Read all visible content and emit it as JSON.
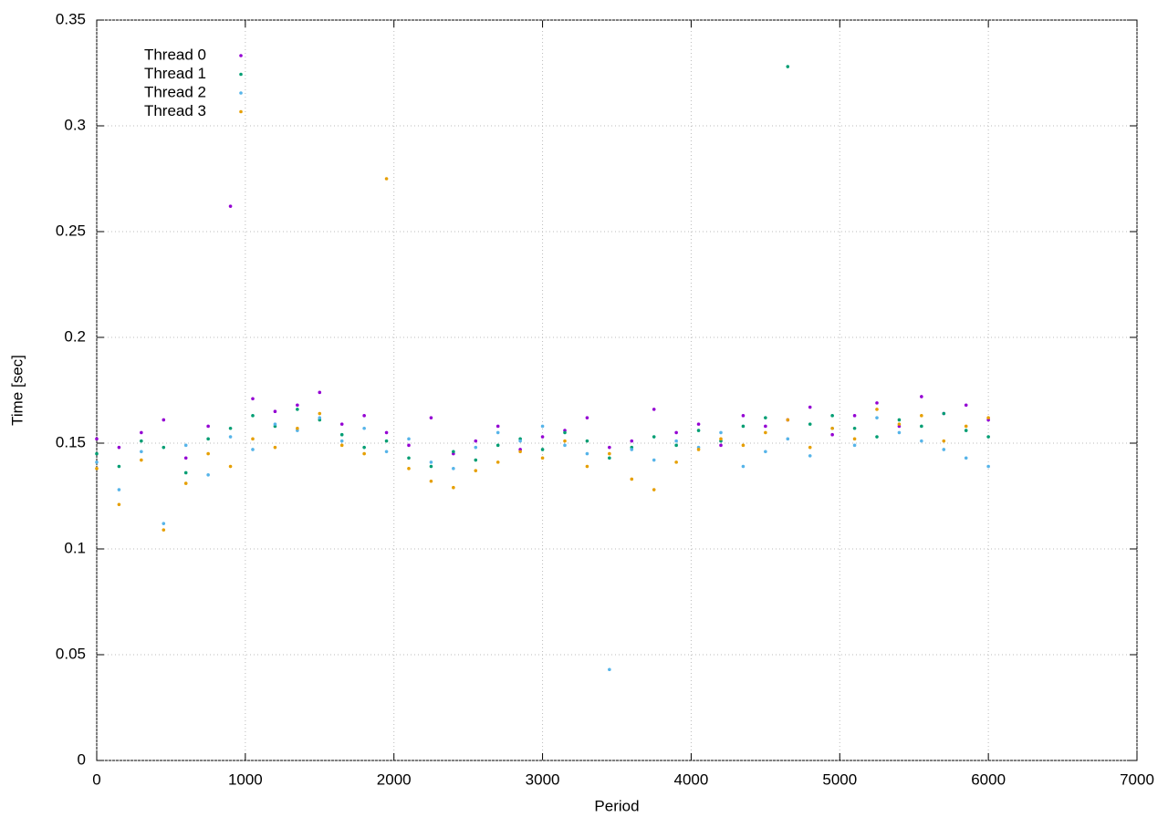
{
  "chart_data": {
    "type": "scatter",
    "x_label": "Period",
    "y_label": "Time [sec]",
    "x": [
      0,
      150,
      300,
      450,
      600,
      750,
      900,
      1050,
      1200,
      1350,
      1500,
      1650,
      1800,
      1950,
      2100,
      2250,
      2400,
      2550,
      2700,
      2850,
      3000,
      3150,
      3300,
      3450,
      3600,
      3750,
      3900,
      4050,
      4200,
      4350,
      4500,
      4650,
      4800,
      4950,
      5100,
      5250,
      5400,
      5550,
      5700,
      5850,
      6000
    ],
    "series": [
      {
        "name": "Thread 0",
        "color": "#9400d3",
        "values": [
          0.152,
          0.148,
          0.155,
          0.161,
          0.143,
          0.158,
          0.262,
          0.171,
          0.165,
          0.168,
          0.174,
          0.159,
          0.163,
          0.155,
          0.149,
          0.162,
          0.145,
          0.151,
          0.158,
          0.147,
          0.153,
          0.156,
          0.162,
          0.148,
          0.151,
          0.166,
          0.155,
          0.159,
          0.149,
          0.163,
          0.158,
          0.161,
          0.167,
          0.154,
          0.163,
          0.169,
          0.158,
          0.172,
          0.164,
          0.168,
          0.161
        ]
      },
      {
        "name": "Thread 1",
        "color": "#009e73",
        "values": [
          0.145,
          0.139,
          0.151,
          0.148,
          0.136,
          0.152,
          0.157,
          0.163,
          0.158,
          0.166,
          0.161,
          0.154,
          0.148,
          0.151,
          0.143,
          0.139,
          0.146,
          0.142,
          0.149,
          0.152,
          0.147,
          0.155,
          0.151,
          0.143,
          0.148,
          0.153,
          0.149,
          0.156,
          0.151,
          0.158,
          0.162,
          0.328,
          0.159,
          0.163,
          0.157,
          0.153,
          0.161,
          0.158,
          0.164,
          0.156,
          0.153
        ]
      },
      {
        "name": "Thread 2",
        "color": "#56b4e9",
        "values": [
          0.141,
          0.128,
          0.146,
          0.112,
          0.149,
          0.135,
          0.153,
          0.147,
          0.159,
          0.156,
          0.162,
          0.151,
          0.157,
          0.146,
          0.152,
          0.141,
          0.138,
          0.148,
          0.155,
          0.151,
          0.158,
          0.149,
          0.145,
          0.043,
          0.147,
          0.142,
          0.151,
          0.148,
          0.155,
          0.139,
          0.146,
          0.152,
          0.144,
          0.157,
          0.149,
          0.162,
          0.155,
          0.151,
          0.147,
          0.143,
          0.139
        ]
      },
      {
        "name": "Thread 3",
        "color": "#e69f00",
        "values": [
          0.138,
          0.121,
          0.142,
          0.109,
          0.131,
          0.145,
          0.139,
          0.152,
          0.148,
          0.157,
          0.164,
          0.149,
          0.145,
          0.275,
          0.138,
          0.132,
          0.129,
          0.137,
          0.141,
          0.146,
          0.143,
          0.151,
          0.139,
          0.145,
          0.133,
          0.128,
          0.141,
          0.147,
          0.152,
          0.149,
          0.155,
          0.161,
          0.148,
          0.157,
          0.152,
          0.166,
          0.159,
          0.163,
          0.151,
          0.158,
          0.162
        ]
      }
    ],
    "xlim": [
      0,
      7000
    ],
    "xticks": [
      0,
      1000,
      2000,
      3000,
      4000,
      5000,
      6000,
      7000
    ],
    "ylim": [
      0,
      0.35
    ],
    "yticks": [
      0,
      0.05,
      0.1,
      0.15,
      0.2,
      0.25,
      0.3,
      0.35
    ],
    "grid": true,
    "legend": "top-left"
  }
}
